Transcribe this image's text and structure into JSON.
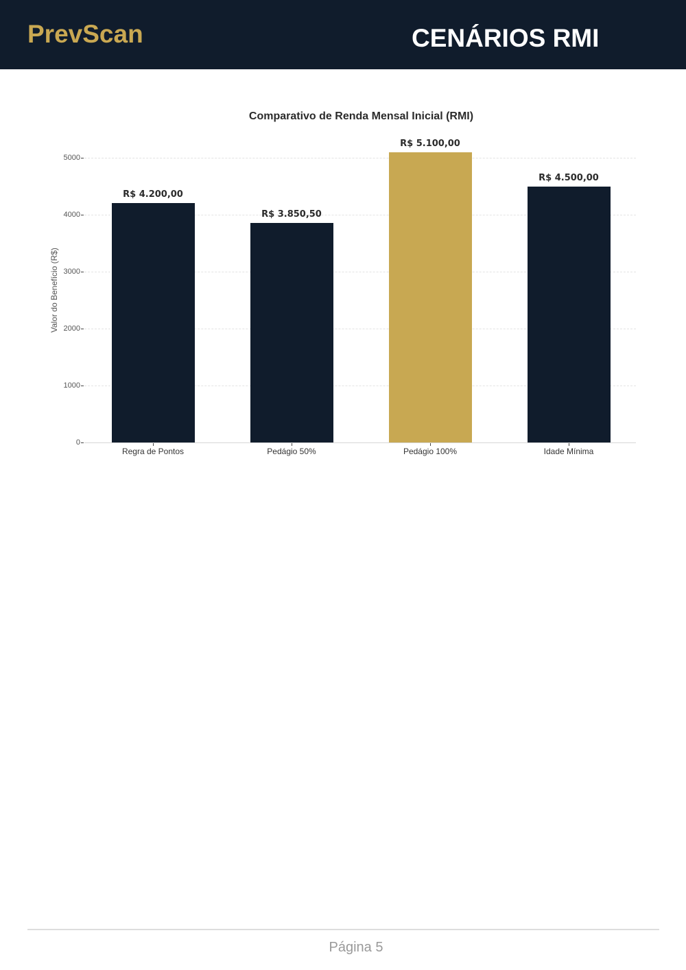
{
  "header": {
    "brand": "PrevScan",
    "title": "CENÁRIOS RMI"
  },
  "colors": {
    "header_bg": "#101c2c",
    "brand_gold": "#c9a852",
    "bar_navy": "#101c2c",
    "bar_highlight": "#c8a852"
  },
  "chart_data": {
    "type": "bar",
    "title": "Comparativo de Renda Mensal Inicial (RMI)",
    "xlabel": "",
    "ylabel": "Valor do Benefício (R$)",
    "categories": [
      "Regra de Pontos",
      "Pedágio 50%",
      "Pedágio 100%",
      "Idade Mínima"
    ],
    "values": [
      4200.0,
      3850.5,
      5100.0,
      4500.0
    ],
    "value_labels": [
      "R$ 4.200,00",
      "R$ 3.850,50",
      "R$ 5.100,00",
      "R$ 4.500,00"
    ],
    "bar_colors": [
      "#101c2c",
      "#101c2c",
      "#c8a852",
      "#101c2c"
    ],
    "highlighted_category": "Pedágio 100%",
    "yticks": [
      0,
      1000,
      2000,
      3000,
      4000,
      5000
    ],
    "ylim": [
      0,
      5350
    ],
    "grid": "horizontal dashed",
    "legend": "none"
  },
  "footer": {
    "page_label": "Página 5"
  }
}
